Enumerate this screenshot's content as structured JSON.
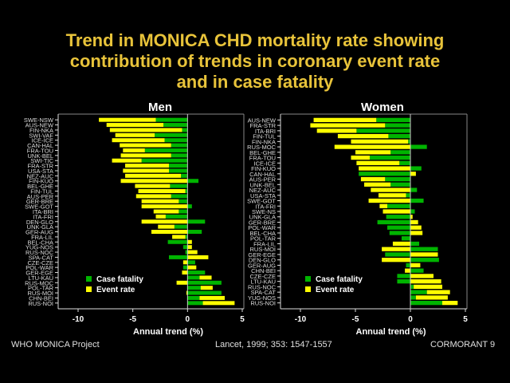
{
  "title_lines": [
    "Trend in MONICA CHD mortality rate showing",
    "contribution of trends in coronary event rate",
    "and  in case fatality"
  ],
  "footer": {
    "left": "WHO MONICA Project",
    "center": "Lancet, 1999; 353: 1547-1557",
    "right": "CORMORANT 9"
  },
  "colors": {
    "case_fatality": "#00b400",
    "event_rate": "#ffff00",
    "title": "#e8c33a"
  },
  "chart_data": [
    {
      "type": "bar",
      "orientation": "horizontal",
      "stacked": true,
      "title": "Men",
      "xlabel": "Annual trend (%)",
      "ylabel": "",
      "xlim": [
        -10,
        5
      ],
      "xticks": [
        "-10",
        "-5",
        "0",
        "5"
      ],
      "legend": {
        "position": "bottom-left",
        "entries": [
          "Case fatality",
          "Event rate"
        ]
      },
      "categories": [
        "SWE-NSW",
        "AUS-NEW",
        "FIN-NKA",
        "SWI-VAF",
        "ICE-ICE",
        "CAN-HAL",
        "FRA-TOU",
        "UNK-BEL",
        "SWI-TIC",
        "FRA-STR",
        "USA-STA",
        "NEZ-AUC",
        "FIN-KUO",
        "BEL-GHE",
        "FIN-TUL",
        "AUS-PER",
        "GER-BRE",
        "SWE-GOT",
        "ITA-BRI",
        "ITA-FRI",
        "DEN-GLO",
        "UNK-GLA",
        "GER-AUG",
        "FRA-LIL",
        "BEL-CHA",
        "YUG-NOS",
        "RUS-NOC",
        "SPA-CAT",
        "CZE-CZE",
        "POL-WAR",
        "GER-EGE",
        "LTU-KAU",
        "RUS-MOC",
        "POL-TAR",
        "RUS-MOI",
        "CHN-BEI",
        "RUS-NOI"
      ],
      "series": [
        {
          "name": "Case fatality",
          "values": [
            -2.9,
            -2.2,
            -0.5,
            -3.0,
            -2.1,
            -1.5,
            -3.9,
            -1.5,
            -4.2,
            -1.7,
            -1.7,
            -0.6,
            1.0,
            -1.6,
            -0.2,
            -1.5,
            -0.8,
            0.4,
            -0.8,
            -2.0,
            1.6,
            -1.2,
            1.3,
            -0.2,
            -1.8,
            -0.4,
            -0.2,
            -1.7,
            0.7,
            -0.4,
            1.6,
            1.1,
            3.1,
            1.2,
            3.1,
            1.1,
            1.4
          ]
        },
        {
          "name": "Event rate",
          "values": [
            -5.2,
            -5.2,
            -6.6,
            -3.6,
            -4.8,
            -4.7,
            -2.0,
            -4.6,
            -2.7,
            -4.0,
            -4.2,
            -5.1,
            -6.1,
            -3.2,
            -4.3,
            -3.2,
            -3.4,
            -4.2,
            -2.3,
            -0.9,
            -4.2,
            -1.5,
            -3.3,
            -1.2,
            0.4,
            0.4,
            0.9,
            1.9,
            -0.4,
            0.8,
            -0.5,
            1.1,
            -1.0,
            1.1,
            -0.1,
            2.3,
            2.9
          ]
        }
      ]
    },
    {
      "type": "bar",
      "orientation": "horizontal",
      "stacked": true,
      "title": "Women",
      "xlabel": "Annual trend (%)",
      "ylabel": "",
      "xlim": [
        -10,
        5
      ],
      "xticks": [
        "-10",
        "-5",
        "0",
        "5"
      ],
      "legend": {
        "position": "bottom-left",
        "entries": [
          "Case fatality",
          "Event rate"
        ]
      },
      "categories": [
        "AUS-NEW",
        "FRA-STR",
        "ITA-BRI",
        "FIN-TUL",
        "FIN-NKA",
        "RUS-MOC",
        "BEL-GHE",
        "FRA-TOU",
        "ICE-ICE",
        "FIN-KUO",
        "CAN-HAL",
        "AUS-PER",
        "UNK-BEL",
        "NEZ-AUC",
        "USA-STA",
        "SWE-GOT",
        "ITA-FRI",
        "SWE-NS",
        "UNK-GLA",
        "GER-BRE",
        "POL-WAR",
        "BEL-CHA",
        "POL-TAR",
        "FRA-LIL",
        "RUS-MOI",
        "GER-EGE",
        "DEN-GLO",
        "GER-AUG",
        "CHN-BEI",
        "CZE-CZE",
        "LTU-KAU",
        "RUS-NOC",
        "SPA-CAT",
        "YUG-NOS",
        "RUS-NOI"
      ],
      "series": [
        {
          "name": "Case fatality",
          "values": [
            -3.1,
            -2.3,
            -4.9,
            -2.0,
            -0.2,
            1.5,
            -1.8,
            -3.7,
            -1.0,
            1.0,
            -4.7,
            -2.3,
            -1.8,
            0.6,
            -0.4,
            1.2,
            -2.1,
            0.4,
            -2.2,
            -3.0,
            -2.1,
            -1.9,
            -0.8,
            0.8,
            2.5,
            -2.3,
            2.6,
            -0.4,
            1.2,
            -1.2,
            -1.2,
            0.3,
            1.5,
            0.5,
            2.9
          ]
        },
        {
          "name": "Event rate",
          "values": [
            -5.7,
            -6.8,
            -3.6,
            -4.6,
            -5.2,
            -6.9,
            -3.2,
            -1.7,
            -3.9,
            -4.7,
            0.5,
            -2.2,
            -2.4,
            -3.6,
            -2.5,
            -3.8,
            -0.7,
            -2.5,
            0.2,
            0.7,
            1.0,
            1.1,
            0.0,
            -1.6,
            -2.6,
            2.5,
            -2.6,
            0.9,
            -0.5,
            2.1,
            2.8,
            2.6,
            2.1,
            2.9,
            1.4
          ]
        }
      ]
    }
  ]
}
